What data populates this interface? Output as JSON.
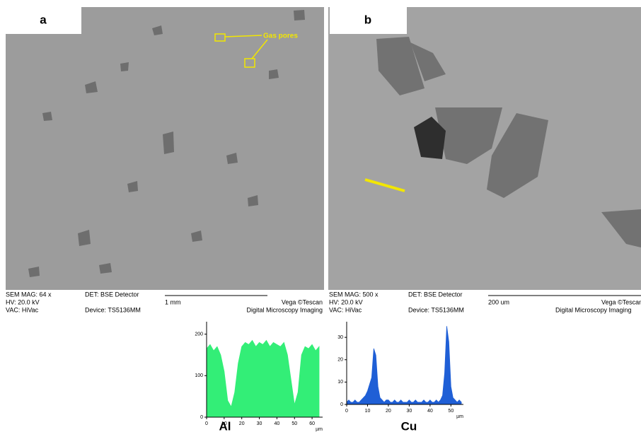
{
  "panels": [
    {
      "label": "a",
      "annotation": "Gas pores",
      "info": [
        "SEM MAG: 64 x",
        "HV:  20.0 kV",
        "VAC: HiVac",
        "DET: BSE Detector",
        "Device: TS5136MM",
        "1 mm",
        "Vega ©Tescan",
        "Digital Microscopy Imaging"
      ]
    },
    {
      "label": "b",
      "info": [
        "SEM MAG: 500 x",
        "HV:  20.0 kV",
        "VAC: HiVac",
        "DET: BSE Detector",
        "Device: TS5136MM",
        "200 um",
        "Vega ©Tescan",
        "Digital Microscopy Imaging"
      ]
    }
  ],
  "chart_data": [
    {
      "type": "area",
      "title": "Al",
      "x_label": "µm",
      "color": "#33ee77",
      "x": [
        0,
        2,
        4,
        6,
        8,
        10,
        12,
        14,
        16,
        18,
        20,
        22,
        24,
        26,
        28,
        30,
        32,
        34,
        36,
        38,
        40,
        42,
        44,
        46,
        48,
        50,
        52,
        54,
        56,
        58,
        60,
        62,
        64
      ],
      "values": [
        165,
        175,
        160,
        170,
        150,
        110,
        40,
        25,
        60,
        130,
        170,
        180,
        175,
        185,
        170,
        180,
        175,
        185,
        170,
        180,
        175,
        170,
        180,
        150,
        90,
        30,
        60,
        150,
        170,
        165,
        175,
        160,
        170
      ],
      "xlim": [
        0,
        66
      ],
      "ylim": [
        0,
        230
      ],
      "xticks": [
        0,
        10,
        20,
        30,
        40,
        50,
        60
      ],
      "yticks": [
        0,
        100,
        200
      ]
    },
    {
      "type": "area",
      "title": "Cu",
      "x_label": "µm",
      "color": "#1f5fd6",
      "x": [
        0,
        1,
        2,
        3,
        4,
        5,
        6,
        7,
        8,
        9,
        10,
        11,
        12,
        13,
        14,
        15,
        16,
        17,
        18,
        19,
        20,
        21,
        22,
        23,
        24,
        25,
        26,
        27,
        28,
        29,
        30,
        31,
        32,
        33,
        34,
        35,
        36,
        37,
        38,
        39,
        40,
        41,
        42,
        43,
        44,
        45,
        46,
        47,
        48,
        49,
        50,
        51,
        52,
        53,
        54,
        55
      ],
      "values": [
        1,
        2,
        1,
        1,
        2,
        1,
        1,
        2,
        3,
        4,
        6,
        9,
        12,
        25,
        22,
        8,
        3,
        2,
        1,
        2,
        2,
        1,
        1,
        2,
        1,
        1,
        2,
        1,
        1,
        1,
        2,
        1,
        1,
        2,
        1,
        1,
        1,
        2,
        1,
        1,
        2,
        1,
        1,
        2,
        1,
        2,
        4,
        14,
        35,
        28,
        8,
        3,
        2,
        1,
        2,
        1
      ],
      "xlim": [
        0,
        56
      ],
      "ylim": [
        0,
        37
      ],
      "xticks": [
        0,
        10,
        20,
        30,
        40,
        50
      ],
      "yticks": [
        0,
        10,
        20,
        30
      ]
    }
  ]
}
